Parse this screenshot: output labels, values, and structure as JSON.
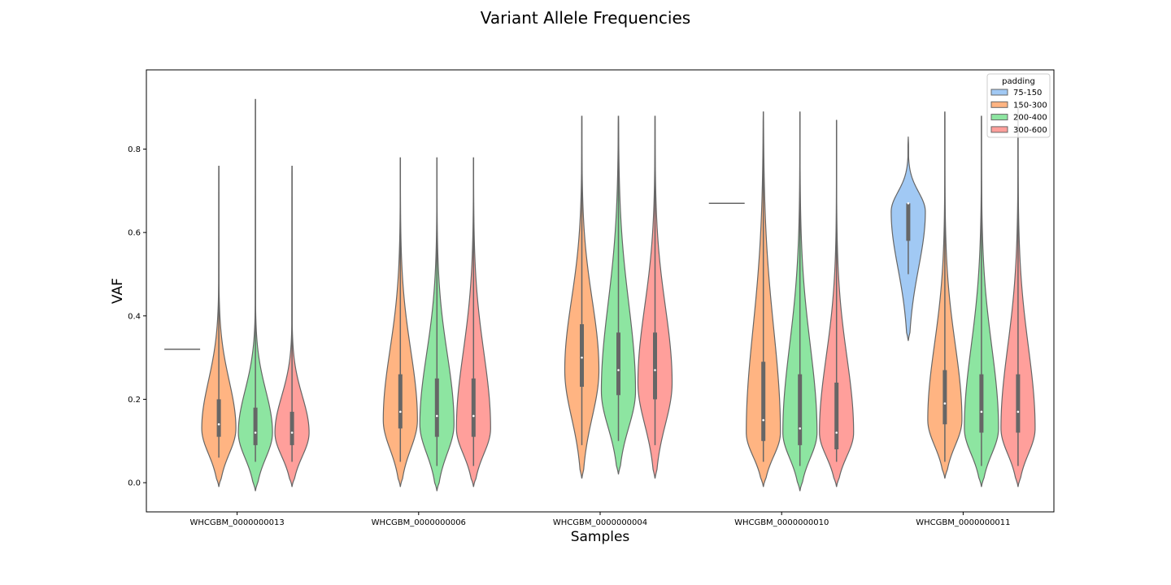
{
  "chart_data": {
    "type": "violin",
    "title": "Variant Allele Frequencies",
    "xlabel": "Samples",
    "ylabel": "VAF",
    "ylim": [
      -0.07,
      0.99
    ],
    "yticks": [
      0.0,
      0.2,
      0.4,
      0.6,
      0.8
    ],
    "ytick_labels": [
      "0.0",
      "0.2",
      "0.4",
      "0.6",
      "0.8"
    ],
    "grid": false,
    "legend": {
      "title": "padding",
      "placement": "top-right"
    },
    "categories": [
      "WHCGBM_0000000013",
      "WHCGBM_0000000006",
      "WHCGBM_0000000004",
      "WHCGBM_0000000010",
      "WHCGBM_0000000011"
    ],
    "series": [
      {
        "name": "75-150",
        "color": "#a1c9f4",
        "groups": [
          {
            "category": "WHCGBM_0000000013",
            "single_value": 0.32
          },
          null,
          null,
          {
            "category": "WHCGBM_0000000010",
            "single_value": 0.67
          },
          {
            "category": "WHCGBM_0000000011",
            "min": 0.5,
            "q1": 0.58,
            "median": 0.67,
            "q3": 0.67,
            "max": 0.67,
            "density_range": [
              0.34,
              0.83
            ],
            "mode": 0.65
          }
        ]
      },
      {
        "name": "150-300",
        "color": "#ffb482",
        "groups": [
          {
            "category": "WHCGBM_0000000013",
            "min": 0.06,
            "q1": 0.11,
            "median": 0.14,
            "q3": 0.2,
            "max": 0.76,
            "density_range": [
              -0.01,
              0.76
            ],
            "mode": 0.13
          },
          {
            "category": "WHCGBM_0000000006",
            "min": 0.05,
            "q1": 0.13,
            "median": 0.17,
            "q3": 0.26,
            "max": 0.78,
            "density_range": [
              -0.01,
              0.78
            ],
            "mode": 0.15
          },
          {
            "category": "WHCGBM_0000000004",
            "min": 0.09,
            "q1": 0.23,
            "median": 0.3,
            "q3": 0.38,
            "max": 0.88,
            "density_range": [
              0.01,
              0.88
            ],
            "mode": 0.27
          },
          {
            "category": "WHCGBM_0000000010",
            "min": 0.05,
            "q1": 0.1,
            "median": 0.15,
            "q3": 0.29,
            "max": 0.89,
            "density_range": [
              -0.01,
              0.89
            ],
            "mode": 0.12
          },
          {
            "category": "WHCGBM_0000000011",
            "min": 0.05,
            "q1": 0.14,
            "median": 0.19,
            "q3": 0.27,
            "max": 0.89,
            "density_range": [
              0.01,
              0.89
            ],
            "mode": 0.15
          }
        ]
      },
      {
        "name": "200-400",
        "color": "#8de5a1",
        "groups": [
          {
            "category": "WHCGBM_0000000013",
            "min": 0.05,
            "q1": 0.09,
            "median": 0.12,
            "q3": 0.18,
            "max": 0.92,
            "density_range": [
              -0.02,
              0.92
            ],
            "mode": 0.12
          },
          {
            "category": "WHCGBM_0000000006",
            "min": 0.04,
            "q1": 0.11,
            "median": 0.16,
            "q3": 0.25,
            "max": 0.78,
            "density_range": [
              -0.02,
              0.78
            ],
            "mode": 0.14
          },
          {
            "category": "WHCGBM_0000000004",
            "min": 0.1,
            "q1": 0.21,
            "median": 0.27,
            "q3": 0.36,
            "max": 0.88,
            "density_range": [
              0.02,
              0.88
            ],
            "mode": 0.22
          },
          {
            "category": "WHCGBM_0000000010",
            "min": 0.04,
            "q1": 0.09,
            "median": 0.13,
            "q3": 0.26,
            "max": 0.89,
            "density_range": [
              -0.02,
              0.89
            ],
            "mode": 0.12
          },
          {
            "category": "WHCGBM_0000000011",
            "min": 0.04,
            "q1": 0.12,
            "median": 0.17,
            "q3": 0.26,
            "max": 0.88,
            "density_range": [
              -0.01,
              0.88
            ],
            "mode": 0.13
          }
        ]
      },
      {
        "name": "300-600",
        "color": "#ff9f9b",
        "groups": [
          {
            "category": "WHCGBM_0000000013",
            "min": 0.05,
            "q1": 0.09,
            "median": 0.12,
            "q3": 0.17,
            "max": 0.76,
            "density_range": [
              -0.01,
              0.76
            ],
            "mode": 0.12
          },
          {
            "category": "WHCGBM_0000000006",
            "min": 0.04,
            "q1": 0.11,
            "median": 0.16,
            "q3": 0.25,
            "max": 0.78,
            "density_range": [
              -0.01,
              0.78
            ],
            "mode": 0.13
          },
          {
            "category": "WHCGBM_0000000004",
            "min": 0.09,
            "q1": 0.2,
            "median": 0.27,
            "q3": 0.36,
            "max": 0.88,
            "density_range": [
              0.01,
              0.88
            ],
            "mode": 0.24
          },
          {
            "category": "WHCGBM_0000000010",
            "min": 0.05,
            "q1": 0.08,
            "median": 0.12,
            "q3": 0.24,
            "max": 0.87,
            "density_range": [
              -0.01,
              0.87
            ],
            "mode": 0.12
          },
          {
            "category": "WHCGBM_0000000011",
            "min": 0.04,
            "q1": 0.12,
            "median": 0.17,
            "q3": 0.26,
            "max": 0.9,
            "density_range": [
              -0.01,
              0.9
            ],
            "mode": 0.13
          }
        ]
      }
    ]
  }
}
